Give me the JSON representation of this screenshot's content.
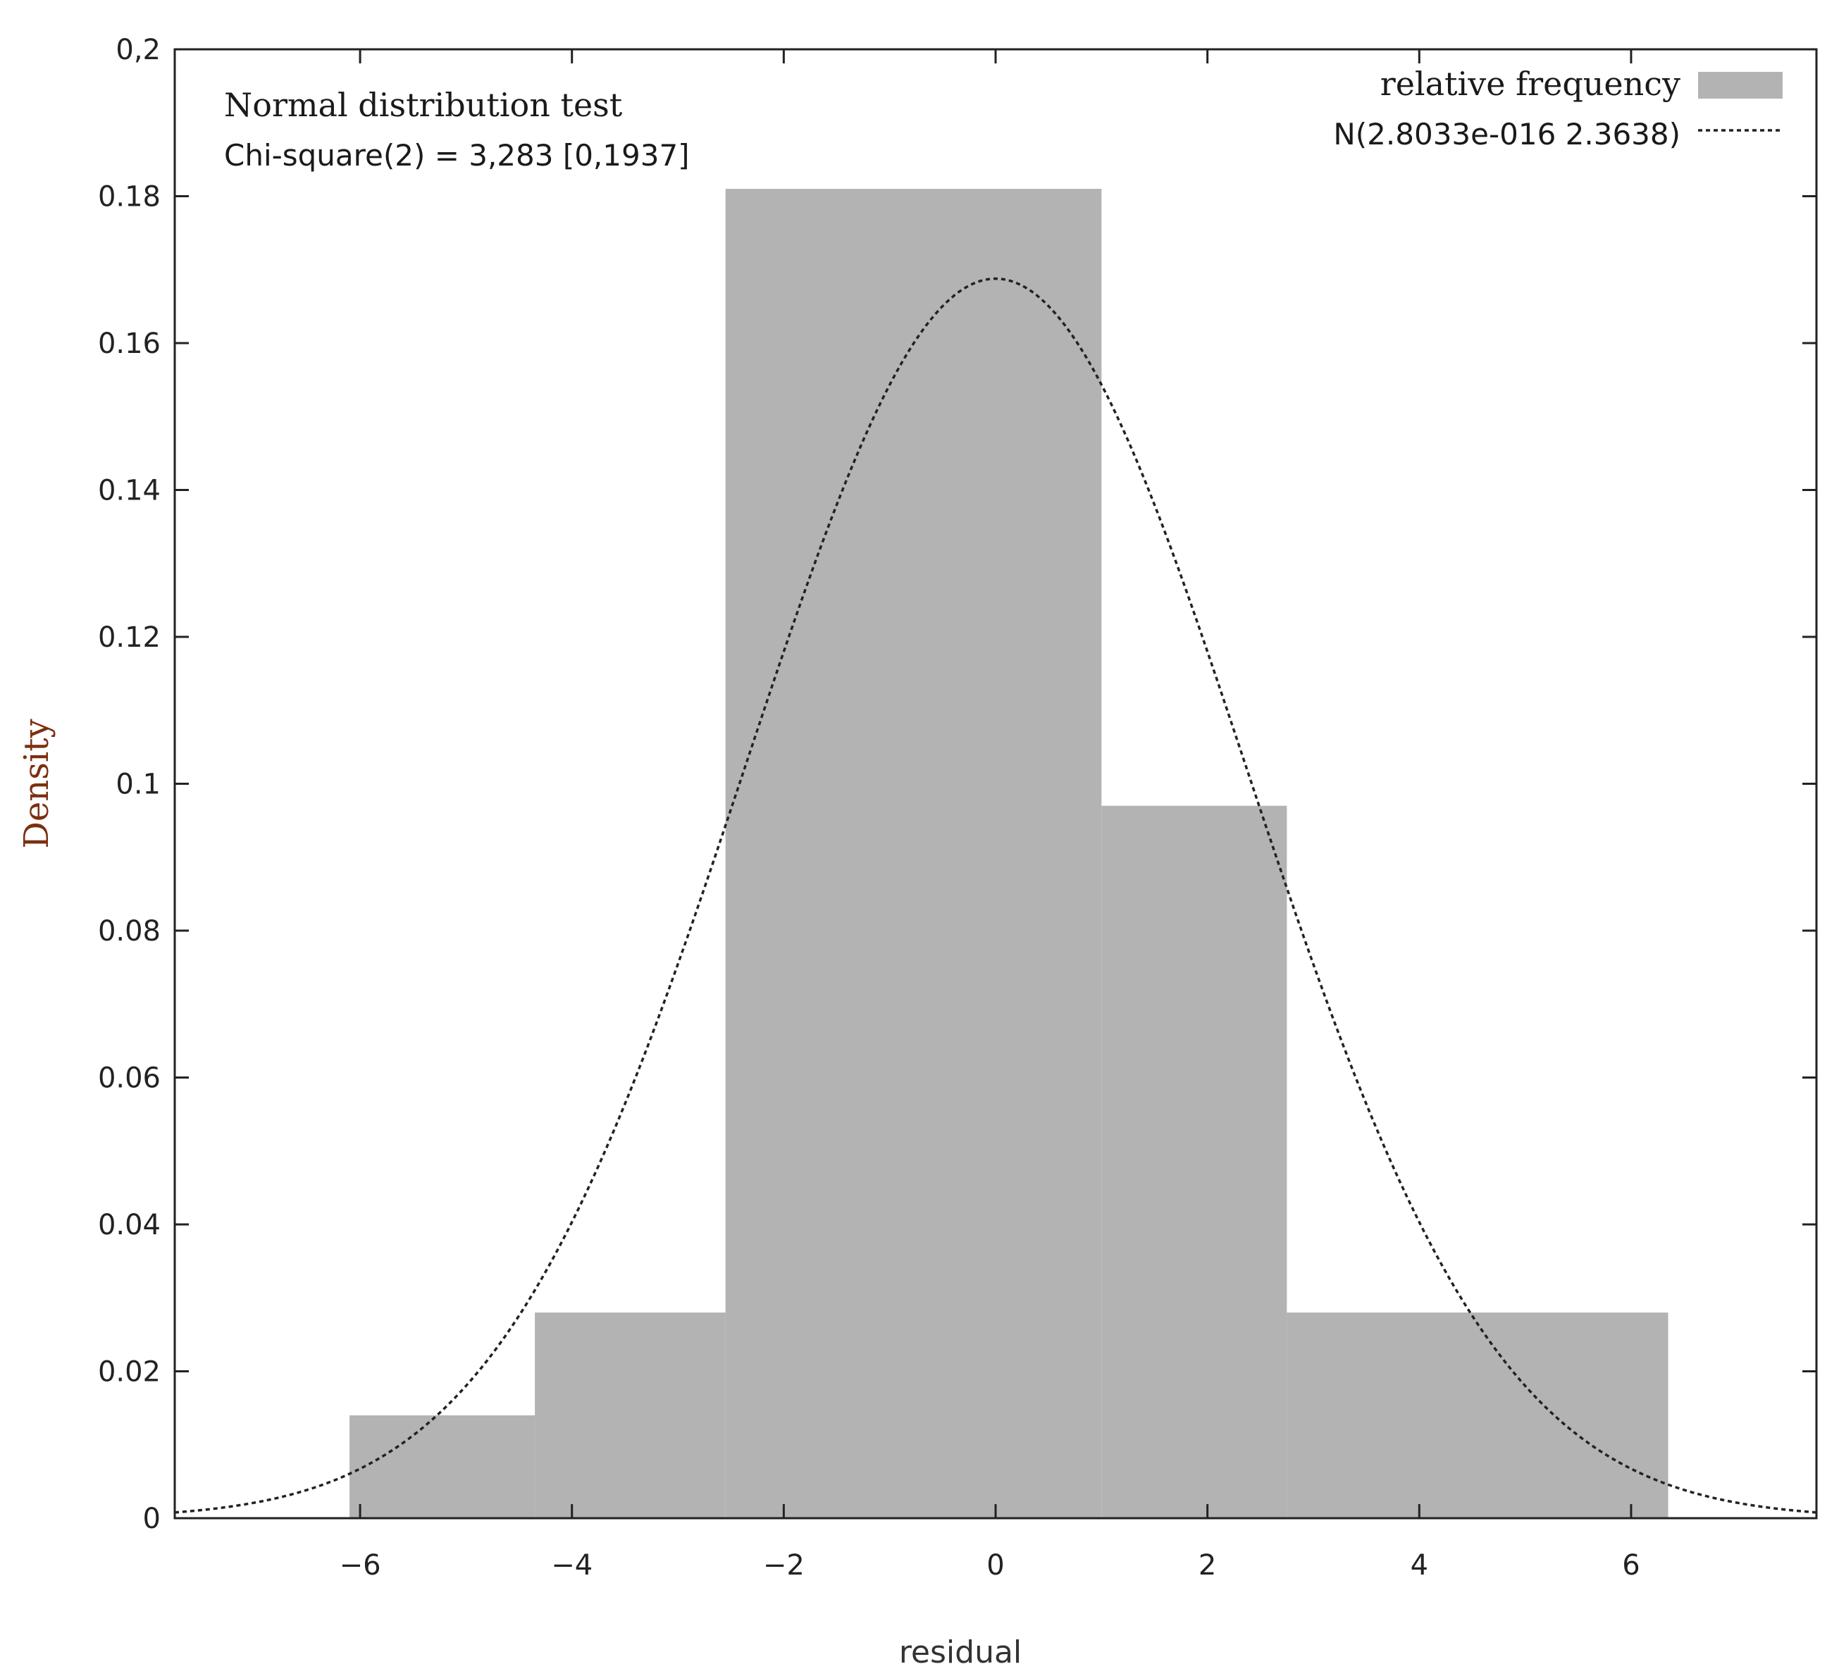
{
  "chart_data": {
    "type": "bar",
    "histogram": true,
    "xlabel": "residual",
    "ylabel": "Density",
    "xlim": [
      -7.75,
      7.75
    ],
    "ylim": [
      0,
      0.2
    ],
    "xticks": [
      -6,
      -4,
      -2,
      0,
      2,
      4,
      6
    ],
    "xtick_labels": [
      "−6",
      "−4",
      "−2",
      "0",
      "2",
      "4",
      "6"
    ],
    "yticks": [
      0,
      0.02,
      0.04,
      0.06,
      0.08,
      0.1,
      0.12,
      0.14,
      0.16,
      0.18,
      0.2
    ],
    "ytick_labels": [
      "0",
      "0.02",
      "0.04",
      "0.06",
      "0.08",
      "0.1",
      "0.12",
      "0.14",
      "0.16",
      "0.18",
      "0,2"
    ],
    "annotation": {
      "line1": "Normal distribution test",
      "line2": "Chi-square(2) = 3,283 [0,1937]"
    },
    "series": [
      {
        "name": "relative frequency",
        "kind": "bars",
        "color": "#b3b3b3",
        "bins": [
          {
            "x0": -6.1,
            "x1": -4.35,
            "value": 0.014
          },
          {
            "x0": -4.35,
            "x1": -2.55,
            "value": 0.028
          },
          {
            "x0": -2.55,
            "x1": 1.0,
            "value": 0.181
          },
          {
            "x0": 1.0,
            "x1": 2.75,
            "value": 0.097
          },
          {
            "x0": 2.75,
            "x1": 6.35,
            "value": 0.028
          }
        ]
      },
      {
        "name": "N(2.8033e-016 2.3638)",
        "kind": "normal-curve",
        "mean": 2.8033e-16,
        "sd": 2.3638,
        "color": "#222222",
        "dashed": true
      }
    ],
    "legend_position": "top-right",
    "grid": false
  }
}
